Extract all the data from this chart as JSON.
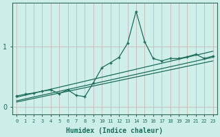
{
  "xlabel": "Humidex (Indice chaleur)",
  "ylabel": "",
  "bg_color": "#cceee8",
  "plot_bg_color": "#cff0ea",
  "line_color": "#1a6b5a",
  "grid_color": "#c8b8b8",
  "axis_color": "#336655",
  "x_data": [
    0,
    1,
    2,
    3,
    4,
    5,
    6,
    7,
    8,
    9,
    10,
    11,
    12,
    13,
    14,
    15,
    16,
    17,
    18,
    19,
    20,
    21,
    22,
    23
  ],
  "y_jagged": [
    0.18,
    0.21,
    0.23,
    0.26,
    0.28,
    0.22,
    0.28,
    0.19,
    0.17,
    0.4,
    0.65,
    0.73,
    0.82,
    1.05,
    1.58,
    1.08,
    0.8,
    0.76,
    0.8,
    0.8,
    0.83,
    0.87,
    0.8,
    0.84
  ],
  "trend_lines": [
    {
      "x0": 0,
      "x1": 23,
      "y0": 0.08,
      "y1": 0.76
    },
    {
      "x0": 0,
      "x1": 23,
      "y0": 0.1,
      "y1": 0.82
    },
    {
      "x0": 0,
      "x1": 23,
      "y0": 0.16,
      "y1": 0.92
    }
  ],
  "yticks": [
    0,
    1
  ],
  "ylim": [
    -0.12,
    1.72
  ],
  "xlim": [
    -0.5,
    23.5
  ],
  "xtick_labels": [
    "0",
    "1",
    "2",
    "3",
    "4",
    "5",
    "6",
    "7",
    "8",
    "9",
    "10",
    "11",
    "12",
    "13",
    "14",
    "15",
    "16",
    "17",
    "18",
    "19",
    "20",
    "21",
    "22",
    "23"
  ]
}
